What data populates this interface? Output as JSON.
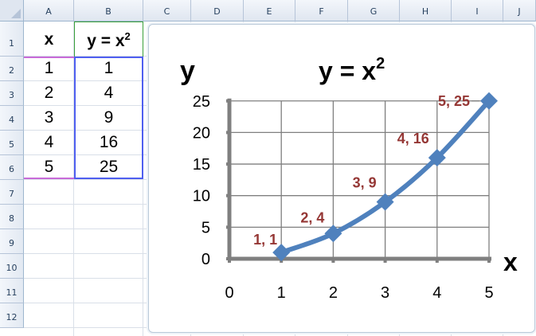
{
  "sheet": {
    "columns": [
      "A",
      "B",
      "C",
      "D",
      "E",
      "F",
      "G",
      "H",
      "I",
      "J"
    ],
    "rows": [
      "1",
      "2",
      "3",
      "4",
      "5",
      "6",
      "7",
      "8",
      "9",
      "10",
      "11",
      "12"
    ],
    "header": {
      "x": "x",
      "y": "y  = x",
      "y_sup": "2"
    },
    "table": [
      {
        "x": "1",
        "y": "1"
      },
      {
        "x": "2",
        "y": "4"
      },
      {
        "x": "3",
        "y": "9"
      },
      {
        "x": "4",
        "y": "16"
      },
      {
        "x": "5",
        "y": "25"
      }
    ]
  },
  "colors": {
    "series": "#4f81bd",
    "data_label": "#953735",
    "gridline": "#7f7f7f"
  },
  "chart_data": {
    "type": "line",
    "title": "y  = x",
    "title_sup": "2",
    "xlabel": "x",
    "ylabel": "y",
    "xlim": [
      0,
      5
    ],
    "ylim": [
      0,
      25
    ],
    "x_ticks": [
      "0",
      "1",
      "2",
      "3",
      "4",
      "5"
    ],
    "y_ticks": [
      "0",
      "5",
      "10",
      "15",
      "20",
      "25"
    ],
    "grid": true,
    "marker": "diamond",
    "smooth": true,
    "series": [
      {
        "x": [
          1,
          2,
          3,
          4,
          5
        ],
        "y": [
          1,
          4,
          9,
          16,
          25
        ],
        "labels": [
          "1, 1",
          "2, 4",
          "3, 9",
          "4, 16",
          "5, 25"
        ]
      }
    ]
  }
}
